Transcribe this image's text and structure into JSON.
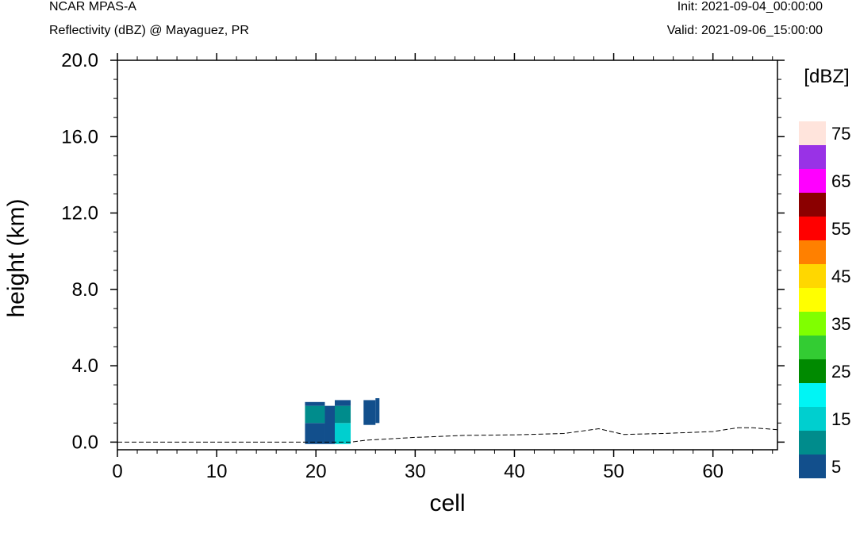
{
  "header": {
    "model": "NCAR MPAS-A",
    "field": "Reflectivity (dBZ) @ Mayaguez, PR",
    "init": "Init: 2021-09-04_00:00:00",
    "valid": "Valid: 2021-09-06_15:00:00"
  },
  "chart_data": {
    "type": "heatmap",
    "title": "",
    "xlabel": "cell",
    "ylabel": "height (km)",
    "xlim": [
      0,
      66.5
    ],
    "ylim": [
      -0.4,
      20.0
    ],
    "x_ticks": [
      0,
      10,
      20,
      30,
      40,
      50,
      60
    ],
    "x_tick_labels": [
      "0",
      "10",
      "20",
      "30",
      "40",
      "50",
      "60"
    ],
    "y_ticks": [
      0,
      4,
      8,
      12,
      16,
      20
    ],
    "y_tick_labels": [
      "0.0",
      "4.0",
      "8.0",
      "12.0",
      "16.0",
      "20.0"
    ],
    "colorbar": {
      "units_label": "[dBZ]",
      "levels": [
        5,
        10,
        15,
        20,
        25,
        30,
        35,
        40,
        45,
        50,
        55,
        60,
        65,
        70,
        75
      ],
      "labels": [
        "5",
        "15",
        "25",
        "35",
        "45",
        "55",
        "65",
        "75"
      ],
      "colors": [
        "#124f8c",
        "#008c8c",
        "#00cfcf",
        "#00f5f5",
        "#008a00",
        "#33cc33",
        "#80ff00",
        "#ffff00",
        "#ffd700",
        "#ff8000",
        "#ff0000",
        "#8b0000",
        "#ff00ff",
        "#9932e6",
        "#ffe4dc"
      ]
    },
    "cells": [
      {
        "x0": 18.9,
        "x1": 20.9,
        "y0": -0.1,
        "y1": 1.0,
        "dbz": 5
      },
      {
        "x0": 18.9,
        "x1": 20.9,
        "y0": 1.0,
        "y1": 1.9,
        "dbz": 10
      },
      {
        "x0": 18.9,
        "x1": 20.9,
        "y0": 1.9,
        "y1": 2.1,
        "dbz": 5
      },
      {
        "x0": 20.9,
        "x1": 21.9,
        "y0": -0.1,
        "y1": 1.9,
        "dbz": 5
      },
      {
        "x0": 21.9,
        "x1": 23.5,
        "y0": -0.1,
        "y1": 1.0,
        "dbz": 15
      },
      {
        "x0": 21.9,
        "x1": 23.5,
        "y0": 1.0,
        "y1": 1.9,
        "dbz": 10
      },
      {
        "x0": 21.9,
        "x1": 23.5,
        "y0": 1.9,
        "y1": 2.2,
        "dbz": 5
      },
      {
        "x0": 24.8,
        "x1": 26.0,
        "y0": 0.9,
        "y1": 2.2,
        "dbz": 5
      },
      {
        "x0": 26.0,
        "x1": 26.4,
        "y0": 1.0,
        "y1": 2.3,
        "dbz": 5
      }
    ],
    "terrain": {
      "x": [
        0,
        18.9,
        23.5,
        25,
        30,
        35,
        40,
        45,
        48.5,
        51,
        55,
        60,
        62.5,
        64,
        66.5
      ],
      "y": [
        0.0,
        0.0,
        0.0,
        0.1,
        0.25,
        0.35,
        0.38,
        0.45,
        0.7,
        0.4,
        0.45,
        0.55,
        0.75,
        0.75,
        0.65
      ]
    }
  }
}
